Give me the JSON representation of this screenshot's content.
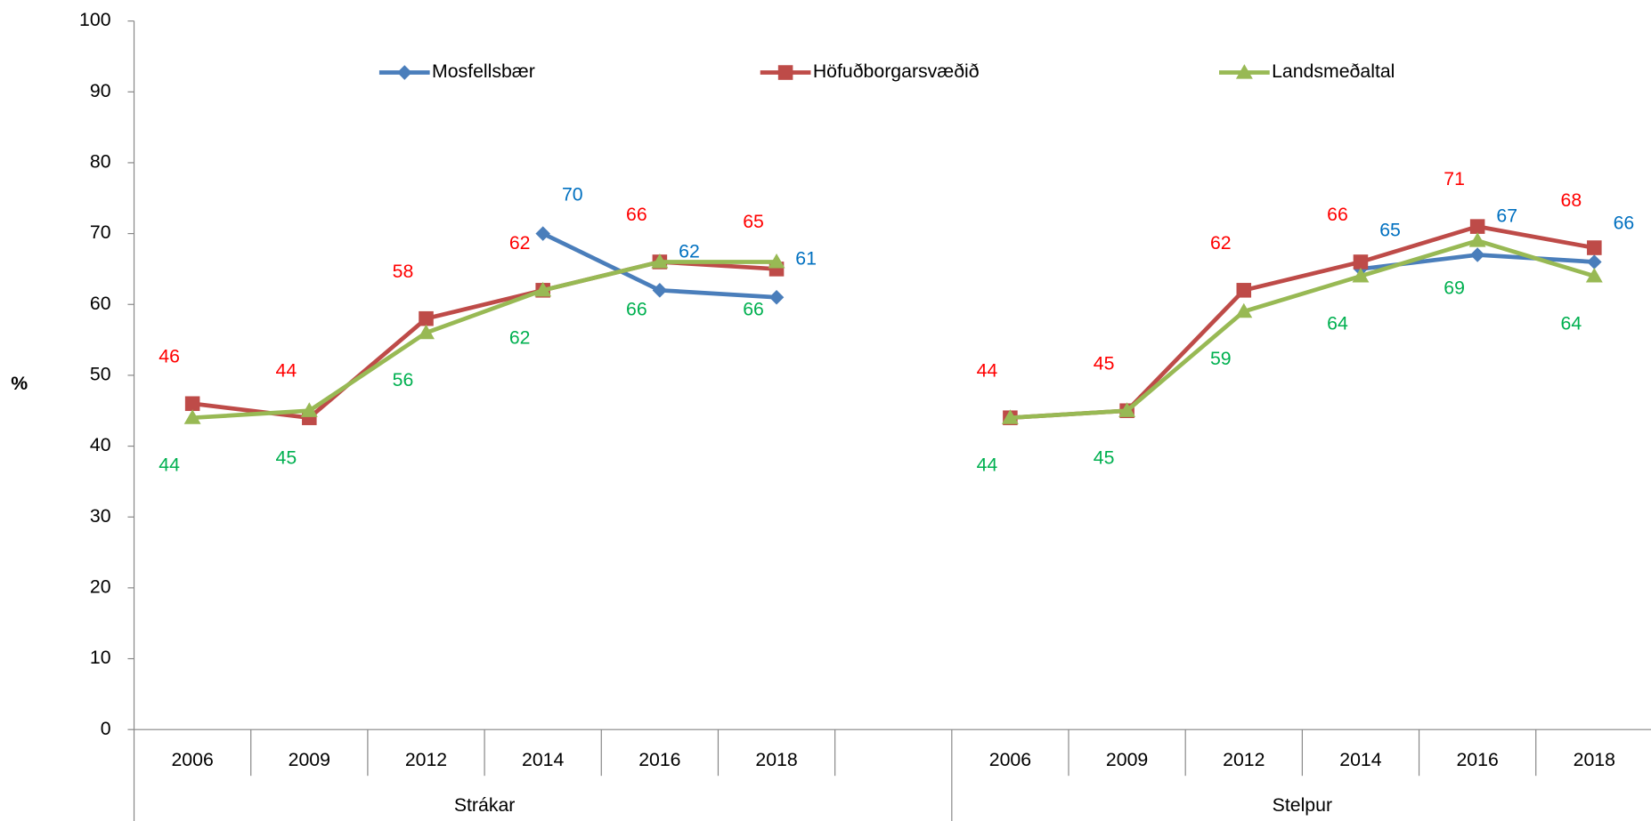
{
  "chart_data": {
    "type": "line",
    "ylabel": "%",
    "categories": [
      "2006",
      "2009",
      "2012",
      "2014",
      "2016",
      "2018",
      null,
      "2006",
      "2009",
      "2012",
      "2014",
      "2016",
      "2018"
    ],
    "group_labels": [
      "Strákar",
      "Stelpur"
    ],
    "ylim": [
      0,
      100
    ],
    "yticks": [
      0,
      10,
      20,
      30,
      40,
      50,
      60,
      70,
      80,
      90,
      100
    ],
    "series": [
      {
        "name": "Mosfellsbær",
        "color": "#4a7ebb",
        "label_color": "#0070c0",
        "marker": "diamond",
        "values": [
          null,
          null,
          null,
          70,
          62,
          61,
          null,
          null,
          null,
          null,
          65,
          67,
          66
        ]
      },
      {
        "name": "Höfuðborgarsvæðið",
        "color": "#be4b48",
        "label_color": "#ff0000",
        "marker": "square",
        "values": [
          46,
          44,
          58,
          62,
          66,
          65,
          null,
          44,
          45,
          62,
          66,
          71,
          68
        ]
      },
      {
        "name": "Landsmeðaltal",
        "color": "#98b954",
        "label_color": "#00b050",
        "marker": "triangle",
        "values": [
          44,
          45,
          56,
          62,
          66,
          66,
          null,
          44,
          45,
          59,
          64,
          69,
          64
        ]
      }
    ]
  }
}
